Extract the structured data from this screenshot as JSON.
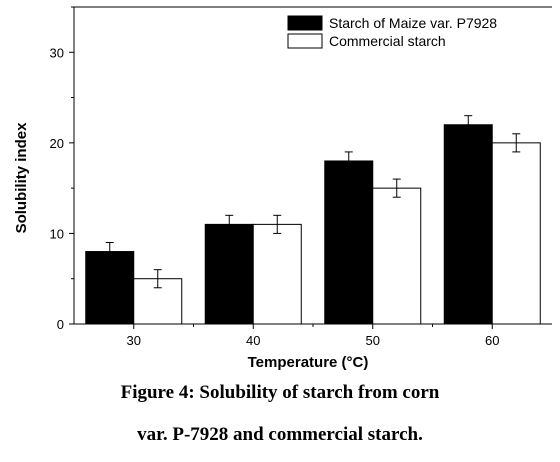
{
  "chart_data": {
    "type": "bar",
    "categories": [
      "30",
      "40",
      "50",
      "60"
    ],
    "xlabel": "Temperature (°C)",
    "ylabel": "Solubility index",
    "ylim": [
      0,
      35
    ],
    "yticks": [
      "0",
      "10",
      "20",
      "30"
    ],
    "grid": false,
    "legend_position": "top-right",
    "series": [
      {
        "name": "Starch of Maize var. P7928",
        "values": [
          8,
          11,
          18,
          22
        ],
        "errors": [
          1,
          1,
          1,
          1
        ],
        "color": "#000000"
      },
      {
        "name": "Commercial starch",
        "values": [
          5,
          11,
          15,
          20
        ],
        "errors": [
          1,
          1,
          1,
          1
        ],
        "color": "#ffffff"
      }
    ]
  },
  "caption": {
    "line1": "Figure 4: Solubility of starch from corn",
    "line2": "var. P-7928 and commercial starch."
  }
}
